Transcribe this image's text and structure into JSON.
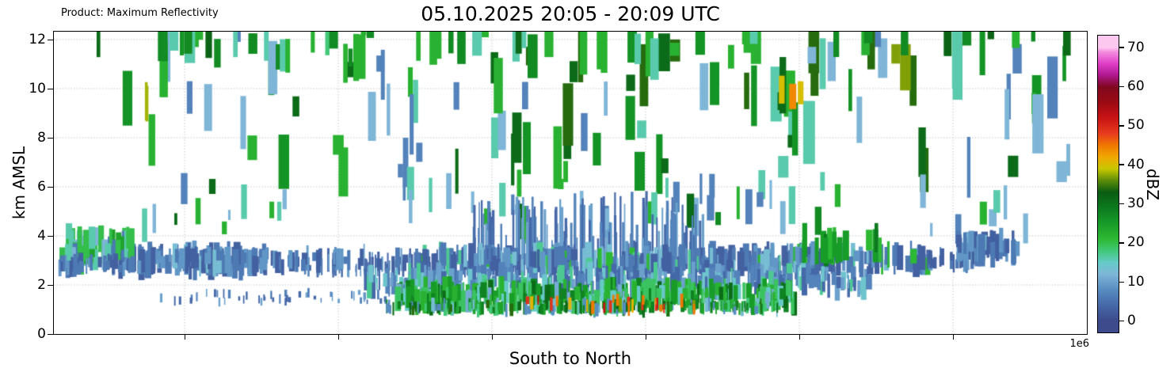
{
  "chart_data": {
    "type": "heatmap",
    "title": "05.10.2025 20:05 - 20:09 UTC",
    "product_label": "Product: Maximum Reflectivity",
    "xlabel": "South to North",
    "ylabel": "km AMSL",
    "x_offset_label": "1e6",
    "y_ticks": [
      0,
      2,
      4,
      6,
      8,
      10,
      12
    ],
    "y_range": [
      0,
      12.32
    ],
    "y_unit": "km AMSL",
    "grid": true,
    "x_gridlines": [
      0.1266,
      0.2753,
      0.4241,
      0.5729,
      0.7217,
      0.8704
    ],
    "colorbar": {
      "label": "dBZ",
      "ticks": [
        0,
        10,
        20,
        30,
        40,
        50,
        60,
        70
      ],
      "vmin": -3,
      "vmax": 73
    },
    "colormap": [
      [
        0,
        "#3d4a8c"
      ],
      [
        4,
        "#4568a8"
      ],
      [
        8,
        "#578cc0"
      ],
      [
        12,
        "#7fb6d8"
      ],
      [
        15,
        "#66cbc8"
      ],
      [
        18,
        "#41c878"
      ],
      [
        21,
        "#2eb934"
      ],
      [
        25,
        "#189c28"
      ],
      [
        29,
        "#0c7a1e"
      ],
      [
        33,
        "#0a5c12"
      ],
      [
        36,
        "#5d8c0a"
      ],
      [
        39,
        "#c8c800"
      ],
      [
        42,
        "#f0a800"
      ],
      [
        45,
        "#f07800"
      ],
      [
        48,
        "#e83c1e"
      ],
      [
        52,
        "#c81414"
      ],
      [
        56,
        "#9c0a14"
      ],
      [
        60,
        "#800820"
      ],
      [
        63,
        "#b01890"
      ],
      [
        66,
        "#e040c8"
      ],
      [
        69,
        "#f490e0"
      ],
      [
        70,
        "#fcc8f0"
      ]
    ],
    "bands": [
      {
        "name": "upper-scatter",
        "seed": 7,
        "count": 115,
        "x": [
          0.03,
          1.0
        ],
        "w": [
          4,
          15
        ],
        "anchor": "center",
        "y": [
          6.6,
          12.4
        ],
        "h": [
          0.5,
          2.6
        ],
        "values": [
          [
            22,
            3
          ],
          [
            26,
            2
          ],
          [
            31,
            2.5
          ],
          [
            34,
            1.5
          ],
          [
            16,
            1.5
          ],
          [
            12,
            2
          ],
          [
            7,
            1.5
          ],
          [
            37,
            0.3
          ]
        ]
      },
      {
        "name": "upper-top-dense",
        "seed": 12,
        "count": 50,
        "x": [
          0.1,
          0.97
        ],
        "w": [
          5,
          14
        ],
        "anchor": "center",
        "y": [
          11.2,
          12.9
        ],
        "h": [
          0.6,
          2.2
        ],
        "values": [
          [
            22,
            3
          ],
          [
            27,
            2
          ],
          [
            32,
            2
          ],
          [
            16,
            2
          ],
          [
            11,
            1.5
          ],
          [
            18,
            1
          ]
        ]
      },
      {
        "name": "upper-orange",
        "seed": 3,
        "count": 3,
        "x": [
          0.695,
          0.73
        ],
        "w": [
          7,
          11
        ],
        "anchor": "center",
        "y": [
          9.6,
          10.1
        ],
        "h": [
          0.9,
          1.4
        ],
        "values": [
          [
            44,
            2
          ],
          [
            40,
            1
          ]
        ]
      },
      {
        "name": "olive-line",
        "seed": 5,
        "count": 2,
        "x": [
          0.084,
          0.091
        ],
        "w": [
          2,
          4
        ],
        "anchor": "center",
        "y": [
          9.3,
          9.7
        ],
        "h": [
          1.2,
          1.6
        ],
        "values": [
          [
            38,
            1
          ],
          [
            34,
            1
          ]
        ]
      },
      {
        "name": "mid-scatter",
        "seed": 21,
        "count": 60,
        "x": [
          0.04,
          1.0
        ],
        "w": [
          3,
          10
        ],
        "anchor": "center",
        "y": [
          4.2,
          6.3
        ],
        "h": [
          0.4,
          1.6
        ],
        "values": [
          [
            12,
            2.5
          ],
          [
            7,
            2
          ],
          [
            16,
            1.5
          ],
          [
            22,
            1.5
          ],
          [
            27,
            1
          ],
          [
            31,
            0.7
          ]
        ]
      },
      {
        "name": "grass-spikes",
        "seed": 33,
        "count": 150,
        "x": [
          0.4,
          0.63
        ],
        "w": [
          1.5,
          3.5
        ],
        "anchor": "bottom",
        "y": [
          2.3,
          2.7
        ],
        "h": [
          0.4,
          3.2
        ],
        "values": [
          [
            4,
            2
          ],
          [
            7,
            2
          ],
          [
            10,
            1
          ]
        ]
      },
      {
        "name": "grass-left",
        "seed": 34,
        "count": 60,
        "x": [
          0.24,
          0.4
        ],
        "w": [
          1.5,
          3
        ],
        "anchor": "bottom",
        "y": [
          2.3,
          2.6
        ],
        "h": [
          0.2,
          1.2
        ],
        "values": [
          [
            4,
            2
          ],
          [
            7,
            2
          ],
          [
            10,
            1
          ]
        ]
      },
      {
        "name": "slate-left",
        "seed": 41,
        "count": 130,
        "x": [
          0.062,
          0.205
        ],
        "w": [
          2,
          9
        ],
        "anchor": "center",
        "y": [
          2.7,
          3.3
        ],
        "h": [
          0.4,
          1.1
        ],
        "values": [
          [
            3,
            3
          ],
          [
            6,
            3
          ],
          [
            9,
            2
          ],
          [
            13,
            1
          ]
        ]
      },
      {
        "name": "slate-mid-sparse",
        "seed": 42,
        "count": 45,
        "x": [
          0.2,
          0.36
        ],
        "w": [
          2,
          8
        ],
        "anchor": "center",
        "y": [
          2.7,
          3.2
        ],
        "h": [
          0.3,
          0.9
        ],
        "values": [
          [
            3,
            3
          ],
          [
            6,
            3
          ],
          [
            9,
            2
          ]
        ]
      },
      {
        "name": "slate-main",
        "seed": 43,
        "count": 330,
        "x": [
          0.345,
          0.845
        ],
        "w": [
          2,
          9
        ],
        "anchor": "center",
        "y": [
          2.7,
          3.3
        ],
        "h": [
          0.4,
          1.1
        ],
        "values": [
          [
            3,
            3
          ],
          [
            6,
            3
          ],
          [
            9,
            2
          ],
          [
            13,
            1.2
          ],
          [
            17,
            0.5
          ],
          [
            21,
            0.5
          ]
        ]
      },
      {
        "name": "slate-right-sparse",
        "seed": 44,
        "count": 22,
        "x": [
          0.845,
          0.89
        ],
        "w": [
          2,
          7
        ],
        "anchor": "center",
        "y": [
          2.8,
          3.2
        ],
        "h": [
          0.3,
          0.8
        ],
        "values": [
          [
            3,
            2
          ],
          [
            6,
            2
          ],
          [
            9,
            1
          ]
        ]
      },
      {
        "name": "right-blue-patch",
        "seed": 55,
        "count": 50,
        "x": [
          0.872,
          0.93
        ],
        "w": [
          3,
          9
        ],
        "anchor": "center",
        "y": [
          3.2,
          3.9
        ],
        "h": [
          0.5,
          1.1
        ],
        "values": [
          [
            3,
            2
          ],
          [
            6,
            2
          ],
          [
            9,
            1
          ],
          [
            13,
            0.5
          ]
        ]
      },
      {
        "name": "left-green-patch",
        "seed": 61,
        "count": 55,
        "x": [
          0.004,
          0.075
        ],
        "w": [
          3,
          9
        ],
        "anchor": "center",
        "y": [
          3.0,
          4.0
        ],
        "h": [
          0.5,
          1.3
        ],
        "values": [
          [
            20,
            3
          ],
          [
            16,
            2
          ],
          [
            24,
            2
          ],
          [
            12,
            1
          ],
          [
            6,
            1
          ]
        ]
      },
      {
        "name": "left-under-blue",
        "seed": 62,
        "count": 40,
        "x": [
          0.004,
          0.075
        ],
        "w": [
          2,
          7
        ],
        "anchor": "center",
        "y": [
          2.6,
          3.0
        ],
        "h": [
          0.3,
          0.7
        ],
        "values": [
          [
            3,
            2
          ],
          [
            6,
            2
          ],
          [
            9,
            1
          ]
        ]
      },
      {
        "name": "right-green-columns",
        "seed": 77,
        "count": 18,
        "x": [
          0.72,
          0.8
        ],
        "w": [
          4,
          9
        ],
        "anchor": "center",
        "y": [
          3.2,
          4.0
        ],
        "h": [
          0.8,
          1.6
        ],
        "values": [
          [
            21,
            2
          ],
          [
            25,
            2
          ],
          [
            29,
            1
          ]
        ]
      },
      {
        "name": "lower-blue-band",
        "seed": 71,
        "count": 300,
        "x": [
          0.3,
          0.79
        ],
        "w": [
          2,
          8
        ],
        "anchor": "center",
        "y": [
          1.8,
          2.5
        ],
        "h": [
          0.4,
          1.0
        ],
        "values": [
          [
            4,
            2.5
          ],
          [
            7,
            2.5
          ],
          [
            10,
            2
          ],
          [
            14,
            1.5
          ],
          [
            17,
            1
          ]
        ]
      },
      {
        "name": "sparse-ticks-row",
        "seed": 73,
        "count": 55,
        "x": [
          0.1,
          0.36
        ],
        "w": [
          1.5,
          3.5
        ],
        "anchor": "center",
        "y": [
          1.3,
          1.7
        ],
        "h": [
          0.15,
          0.4
        ],
        "values": [
          [
            4,
            2
          ],
          [
            7,
            2
          ],
          [
            10,
            1
          ]
        ]
      },
      {
        "name": "lower-green-band",
        "seed": 81,
        "count": 330,
        "x": [
          0.33,
          0.715
        ],
        "w": [
          2,
          8
        ],
        "anchor": "center",
        "y": [
          1.2,
          1.9
        ],
        "h": [
          0.4,
          1.0
        ],
        "values": [
          [
            19,
            2.5
          ],
          [
            22,
            2.5
          ],
          [
            25,
            2
          ],
          [
            28,
            1.5
          ],
          [
            15,
            1.5
          ],
          [
            31,
            1
          ],
          [
            11,
            1
          ]
        ]
      },
      {
        "name": "bottom-dark-mix",
        "seed": 91,
        "count": 210,
        "x": [
          0.32,
          0.7
        ],
        "w": [
          1.5,
          5
        ],
        "anchor": "center",
        "y": [
          0.95,
          1.25
        ],
        "h": [
          0.25,
          0.6
        ],
        "values": [
          [
            24,
            2
          ],
          [
            28,
            2
          ],
          [
            31,
            1.5
          ],
          [
            34,
            1
          ],
          [
            8,
            1.5
          ],
          [
            13,
            1.5
          ],
          [
            18,
            1.5
          ]
        ]
      },
      {
        "name": "hot-specks",
        "seed": 99,
        "count": 26,
        "x": [
          0.455,
          0.62
        ],
        "w": [
          2,
          4.5
        ],
        "anchor": "center",
        "y": [
          1.0,
          1.45
        ],
        "h": [
          0.25,
          0.6
        ],
        "values": [
          [
            41,
            2
          ],
          [
            45,
            2
          ],
          [
            49,
            1.2
          ],
          [
            52,
            0.8
          ],
          [
            37,
            1.5
          ]
        ]
      }
    ]
  }
}
